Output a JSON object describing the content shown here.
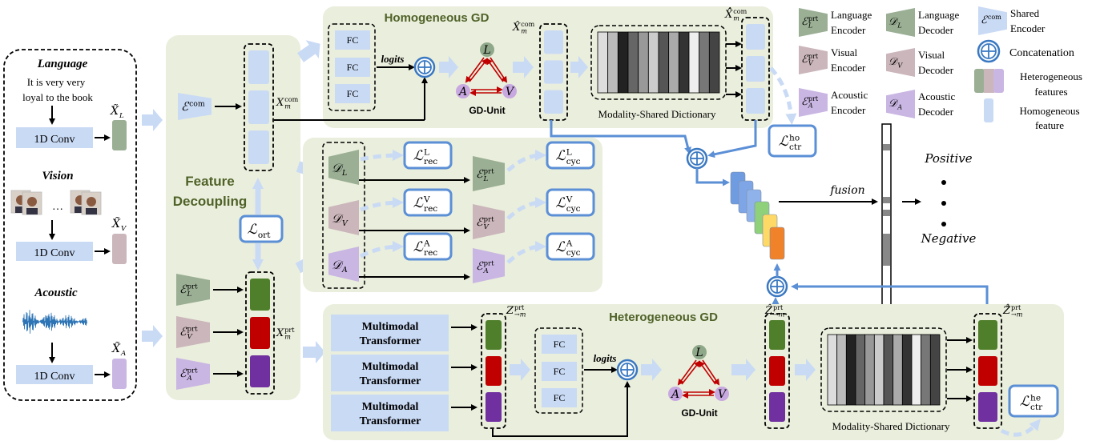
{
  "colors": {
    "panel": "#eaeedc",
    "language": "#9aaf94",
    "visual": "#cbb6bb",
    "acoustic": "#c9b6e3",
    "homogeneous": "#c9daf5",
    "loss_border": "#5b8fd6",
    "concat": "#3a78c2",
    "green": "#4f7f2a",
    "red": "#c00000",
    "purple": "#7030a0"
  },
  "inputs": {
    "language": {
      "title": "Language",
      "text": [
        "It is very very",
        "loyal to the book"
      ],
      "conv": "1D Conv",
      "feature": {
        "b": "X̃",
        "sub": "L"
      }
    },
    "vision": {
      "title": "Vision",
      "ellipsis": "…",
      "conv": "1D Conv",
      "feature": {
        "b": "X̃",
        "sub": "V"
      }
    },
    "acoustic": {
      "title": "Acoustic",
      "conv": "1D Conv",
      "feature": {
        "b": "X̃",
        "sub": "A"
      }
    }
  },
  "feature_decoupling": {
    "title": [
      "Feature",
      "Decoupling"
    ],
    "shared_encoder": {
      "b": "ℰ",
      "sup": "com"
    },
    "common_feature": {
      "b": "X",
      "sub": "m",
      "sup": "com"
    },
    "loss_ort": {
      "b": "ℒ",
      "sub": "ort"
    },
    "private_encoders": [
      {
        "b": "ℰ",
        "sub": "L",
        "sup": "prt"
      },
      {
        "b": "ℰ",
        "sub": "V",
        "sup": "prt"
      },
      {
        "b": "ℰ",
        "sub": "A",
        "sup": "prt"
      }
    ],
    "private_feature": {
      "b": "X",
      "sub": "m",
      "sup": "prt"
    }
  },
  "homogeneous_gd": {
    "title": "Homogeneous GD",
    "fc": [
      "FC",
      "FC",
      "FC"
    ],
    "logits": "logits",
    "gd_unit": {
      "label": "GD-Unit",
      "nodes": [
        "L",
        "A",
        "V"
      ]
    },
    "feature_hat": {
      "b": "X̂",
      "sub": "m",
      "sup": "com"
    },
    "dictionary": "Modality-Shared Dictionary",
    "feature_hathat": {
      "b": "X̂̂",
      "sub": "m",
      "sup": "com"
    },
    "loss": {
      "b": "ℒ",
      "sub": "ctr",
      "sup": "ho"
    }
  },
  "reconstruction": {
    "decoders": [
      {
        "b": "𝒟",
        "sub": "L"
      },
      {
        "b": "𝒟",
        "sub": "V"
      },
      {
        "b": "𝒟",
        "sub": "A"
      }
    ],
    "rec_losses": [
      {
        "b": "ℒ",
        "sub": "rec",
        "sup": "L"
      },
      {
        "b": "ℒ",
        "sub": "rec",
        "sup": "V"
      },
      {
        "b": "ℒ",
        "sub": "rec",
        "sup": "A"
      }
    ],
    "encoders": [
      {
        "b": "ℰ",
        "sub": "L",
        "sup": "prt"
      },
      {
        "b": "ℰ",
        "sub": "V",
        "sup": "prt"
      },
      {
        "b": "ℰ",
        "sub": "A",
        "sup": "prt"
      }
    ],
    "cyc_losses": [
      {
        "b": "ℒ",
        "sub": "cyc",
        "sup": "L"
      },
      {
        "b": "ℒ",
        "sub": "cyc",
        "sup": "V"
      },
      {
        "b": "ℒ",
        "sub": "cyc",
        "sup": "A"
      }
    ]
  },
  "heterogeneous_gd": {
    "title": "Heterogeneous GD",
    "transformers": [
      [
        "Multimodal",
        "Transformer"
      ],
      [
        "Multimodal",
        "Transformer"
      ],
      [
        "Multimodal",
        "Transformer"
      ]
    ],
    "z_feature": {
      "b": "Z",
      "sub": "→m",
      "sup": "prt"
    },
    "fc": [
      "FC",
      "FC",
      "FC"
    ],
    "logits": "logits",
    "gd_unit": {
      "label": "GD-Unit",
      "nodes": [
        "L",
        "A",
        "V"
      ]
    },
    "z_hat": {
      "b": "Ẑ",
      "sub": "→m",
      "sup": "prt"
    },
    "dictionary": "Modality-Shared Dictionary",
    "z_hathat": {
      "b": "Ẑ̂",
      "sub": "→m",
      "sup": "prt"
    },
    "loss": {
      "b": "ℒ",
      "sub": "ctr",
      "sup": "he"
    }
  },
  "output": {
    "fusion": "fusion",
    "positive": "Positive",
    "negative": "Negative"
  },
  "legend": {
    "language_encoder": {
      "sym": {
        "b": "ℰ",
        "sub": "L",
        "sup": "prt"
      },
      "text": [
        "Language",
        "Encoder"
      ]
    },
    "language_decoder": {
      "sym": {
        "b": "𝒟",
        "sub": "L"
      },
      "text": [
        "Language",
        "Decoder"
      ]
    },
    "shared_encoder": {
      "sym": {
        "b": "ℰ",
        "sup": "com"
      },
      "text": [
        "Shared",
        "Encoder"
      ]
    },
    "visual_encoder": {
      "sym": {
        "b": "ℰ",
        "sub": "V",
        "sup": "prt"
      },
      "text": [
        "Visual",
        "Encoder"
      ]
    },
    "visual_decoder": {
      "sym": {
        "b": "𝒟",
        "sub": "V"
      },
      "text": [
        "Visual",
        "Decoder"
      ]
    },
    "concatenation": {
      "text": "Concatenation"
    },
    "acoustic_encoder": {
      "sym": {
        "b": "ℰ",
        "sub": "A",
        "sup": "prt"
      },
      "text": [
        "Acoustic",
        "Encoder"
      ]
    },
    "acoustic_decoder": {
      "sym": {
        "b": "𝒟",
        "sub": "A"
      },
      "text": [
        "Acoustic",
        "Decoder"
      ]
    },
    "heterogeneous": {
      "text": [
        "Heterogeneous",
        "features"
      ]
    },
    "homogeneous": {
      "text": [
        "Homogeneous",
        "feature"
      ]
    }
  }
}
